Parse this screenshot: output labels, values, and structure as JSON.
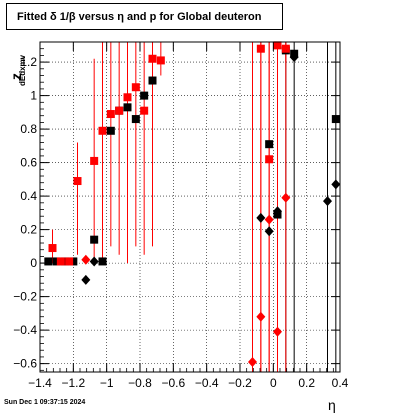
{
  "title": "Fitted δ 1/β versus η and p for Global deuteron",
  "footer": "Sun Dec  1 09:37:15 2024",
  "chart_data": {
    "type": "scatter",
    "title": "Fitted δ 1/β versus η and p for Global deuteron",
    "xlabel": "η",
    "ylabel_main": "z",
    "ylabel_sub": "dEdxmv",
    "xlim": [
      -1.4,
      0.4
    ],
    "ylim": [
      -0.65,
      1.32
    ],
    "x_ticks": [
      -1.4,
      -1.2,
      -1.0,
      -0.8,
      -0.6,
      -0.4,
      -0.2,
      0.0,
      0.2,
      0.4
    ],
    "x_tick_labels": [
      "−1.4",
      "−1.2",
      "−1",
      "−0.8",
      "−0.6",
      "−0.4",
      "−0.2",
      "0",
      "0.2",
      "0.4"
    ],
    "y_ticks": [
      -0.6,
      -0.4,
      -0.2,
      0.0,
      0.2,
      0.4,
      0.6,
      0.8,
      1.0,
      1.2
    ],
    "y_tick_labels": [
      "−0.6",
      "−0.4",
      "−0.2",
      "0",
      "0.2",
      "0.4",
      "0.6",
      "0.8",
      "1",
      "1.2"
    ],
    "grid": true,
    "series": [
      {
        "color": "#000000",
        "marker": "square",
        "points": [
          {
            "x": -1.35,
            "y": 0.01,
            "lo": 0.01,
            "hi": 0.01
          },
          {
            "x": -1.3,
            "y": 0.01,
            "lo": 0.01,
            "hi": 0.01
          },
          {
            "x": -1.25,
            "y": 0.01,
            "lo": 0.01,
            "hi": 0.01
          },
          {
            "x": -1.2,
            "y": 0.01,
            "lo": 0.01,
            "hi": 0.01
          },
          {
            "x": -1.075,
            "y": 0.14,
            "lo": 0.14,
            "hi": 0.14
          },
          {
            "x": -1.025,
            "y": 0.01,
            "lo": 0.01,
            "hi": 0.01
          },
          {
            "x": -0.975,
            "y": 0.79,
            "lo": 0.79,
            "hi": 0.79
          },
          {
            "x": -0.925,
            "y": 0.91,
            "lo": 0.91,
            "hi": 0.91
          },
          {
            "x": -0.875,
            "y": 0.93,
            "lo": 0.93,
            "hi": 0.93
          },
          {
            "x": -0.825,
            "y": 0.86,
            "lo": 0.86,
            "hi": 0.86
          },
          {
            "x": -0.775,
            "y": 1.0,
            "lo": 1.0,
            "hi": 1.0
          },
          {
            "x": -0.725,
            "y": 1.09,
            "lo": 0.72,
            "hi": 1.32
          },
          {
            "x": -0.025,
            "y": 0.71,
            "lo": 0.71,
            "hi": 0.71
          },
          {
            "x": 0.025,
            "y": 0.29,
            "lo": 0.29,
            "hi": 0.29
          },
          {
            "x": 0.075,
            "y": 1.27,
            "lo": -0.65,
            "hi": 1.32
          },
          {
            "x": 0.125,
            "y": 1.25,
            "lo": -0.65,
            "hi": 1.32
          },
          {
            "x": 0.375,
            "y": 0.86,
            "lo": -0.65,
            "hi": 1.32
          }
        ]
      },
      {
        "color": "#000000",
        "marker": "diamond",
        "points": [
          {
            "x": -1.125,
            "y": -0.1,
            "lo": -0.1,
            "hi": -0.1
          },
          {
            "x": -1.075,
            "y": 0.01,
            "lo": 0.01,
            "hi": 0.01
          },
          {
            "x": -0.075,
            "y": 0.27,
            "lo": 0.27,
            "hi": 0.27
          },
          {
            "x": -0.025,
            "y": 0.19,
            "lo": 0.19,
            "hi": 0.19
          },
          {
            "x": 0.025,
            "y": 0.31,
            "lo": 0.31,
            "hi": 0.31
          },
          {
            "x": 0.125,
            "y": 1.23,
            "lo": 1.23,
            "hi": 1.23
          },
          {
            "x": 0.325,
            "y": 0.37,
            "lo": -0.65,
            "hi": 1.32
          },
          {
            "x": 0.375,
            "y": 0.47,
            "lo": 0.47,
            "hi": 0.47
          }
        ]
      },
      {
        "color": "#ff0000",
        "marker": "square",
        "points": [
          {
            "x": -1.325,
            "y": 0.09,
            "lo": 0.0,
            "hi": 0.2
          },
          {
            "x": -1.275,
            "y": 0.01,
            "lo": 0.01,
            "hi": 0.01
          },
          {
            "x": -1.225,
            "y": 0.01,
            "lo": 0.01,
            "hi": 0.01
          },
          {
            "x": -1.175,
            "y": 0.49,
            "lo": 0.05,
            "hi": 0.72
          },
          {
            "x": -1.075,
            "y": 0.61,
            "lo": 0.0,
            "hi": 1.22
          },
          {
            "x": -1.025,
            "y": 0.79,
            "lo": 0.0,
            "hi": 1.32
          },
          {
            "x": -0.975,
            "y": 0.89,
            "lo": 0.1,
            "hi": 1.32
          },
          {
            "x": -0.925,
            "y": 0.91,
            "lo": 0.05,
            "hi": 1.32
          },
          {
            "x": -0.875,
            "y": 0.99,
            "lo": 0.0,
            "hi": 1.32
          },
          {
            "x": -0.825,
            "y": 1.05,
            "lo": 0.1,
            "hi": 1.32
          },
          {
            "x": -0.775,
            "y": 0.91,
            "lo": 0.05,
            "hi": 1.32
          },
          {
            "x": -0.725,
            "y": 1.22,
            "lo": 0.1,
            "hi": 1.32
          },
          {
            "x": -0.675,
            "y": 1.21,
            "lo": 1.12,
            "hi": 1.32
          },
          {
            "x": -0.075,
            "y": 1.28,
            "lo": -0.65,
            "hi": 1.32
          },
          {
            "x": -0.025,
            "y": 0.62,
            "lo": -0.65,
            "hi": 1.32
          },
          {
            "x": 0.025,
            "y": 1.3,
            "lo": -0.65,
            "hi": 1.32
          },
          {
            "x": 0.075,
            "y": 1.28,
            "lo": 1.2,
            "hi": 1.32
          }
        ]
      },
      {
        "color": "#ff0000",
        "marker": "diamond",
        "points": [
          {
            "x": -1.125,
            "y": 0.02,
            "lo": 0.02,
            "hi": 0.02
          },
          {
            "x": -0.125,
            "y": -0.59,
            "lo": -0.65,
            "hi": 1.32
          },
          {
            "x": -0.075,
            "y": -0.32,
            "lo": -0.65,
            "hi": 1.32
          },
          {
            "x": -0.025,
            "y": 0.26,
            "lo": -0.65,
            "hi": 1.32
          },
          {
            "x": 0.025,
            "y": -0.41,
            "lo": -0.65,
            "hi": 1.32
          },
          {
            "x": 0.075,
            "y": 0.39,
            "lo": -0.65,
            "hi": 1.32
          }
        ]
      }
    ]
  }
}
